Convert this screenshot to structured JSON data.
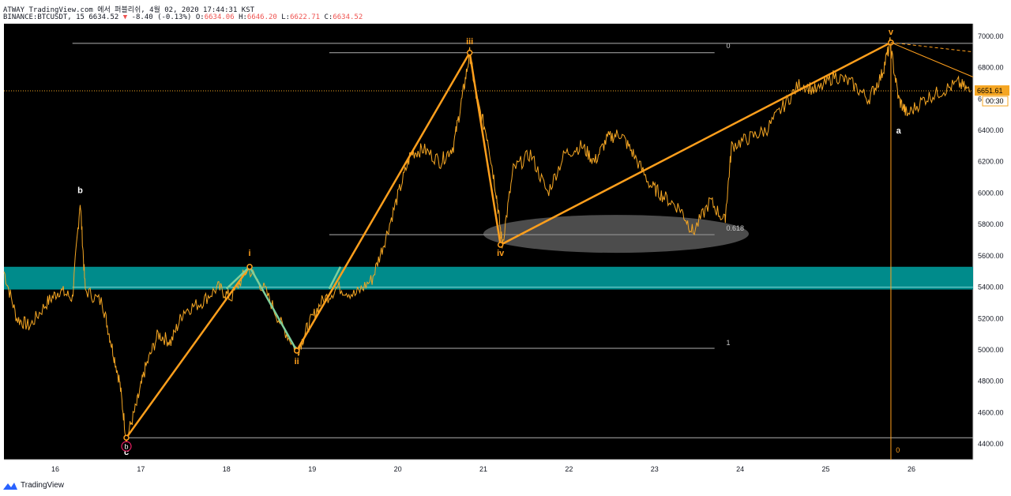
{
  "header": {
    "line1": "ATWAY TradingView.com 에서 퍼블리쉬, 4월 02, 2020 17:44:31 KST",
    "symbol": "BINANCE:BTCUSDT, 15",
    "last": "6634.52",
    "change": "-8.40 (-0.13%)",
    "o_label": "O:",
    "o": "6634.06",
    "h_label": "H:",
    "h": "6646.20",
    "l_label": "L:",
    "l": "6622.71",
    "c_label": "C:",
    "c": "6634.52"
  },
  "footer": {
    "brand": "TradingView"
  },
  "colors": {
    "candle": "#f5a623",
    "wave": "#ff9f1c",
    "wave_i": "#7ecf9c",
    "zone": "#008b8b",
    "fib": "#9e9e9e",
    "price_tag": "#f5a623"
  },
  "chart_data": {
    "type": "line",
    "ylim": [
      4300,
      7080
    ],
    "xlim": [
      15.4,
      26.72
    ],
    "y_ticks": [
      "4400.00",
      "4600.00",
      "4800.00",
      "5000.00",
      "5200.00",
      "5400.00",
      "5600.00",
      "5800.00",
      "6000.00",
      "6200.00",
      "6400.00",
      "6600.00",
      "6800.00",
      "7000.00"
    ],
    "y_tick_values": [
      4400,
      4600,
      4800,
      5000,
      5200,
      5400,
      5600,
      5800,
      6000,
      6200,
      6400,
      6600,
      6800,
      7000
    ],
    "x_ticks": [
      "16",
      "17",
      "18",
      "19",
      "20",
      "21",
      "22",
      "23",
      "24",
      "25",
      "26"
    ],
    "x_tick_values": [
      16,
      17,
      18,
      19,
      20,
      21,
      22,
      23,
      24,
      25,
      26
    ],
    "current_price": "6651.61",
    "current_price_value": 6651.61,
    "countdown": "00:30",
    "price_series": [
      [
        15.4,
        5500
      ],
      [
        15.55,
        5200
      ],
      [
        15.7,
        5150
      ],
      [
        15.9,
        5300
      ],
      [
        16.05,
        5380
      ],
      [
        16.2,
        5330
      ],
      [
        16.29,
        5950
      ],
      [
        16.35,
        5380
      ],
      [
        16.55,
        5300
      ],
      [
        16.65,
        5050
      ],
      [
        16.75,
        4800
      ],
      [
        16.83,
        4430
      ],
      [
        16.95,
        4650
      ],
      [
        17.05,
        4880
      ],
      [
        17.2,
        5100
      ],
      [
        17.35,
        5050
      ],
      [
        17.5,
        5250
      ],
      [
        17.7,
        5300
      ],
      [
        17.9,
        5400
      ],
      [
        18.05,
        5330
      ],
      [
        18.25,
        5520
      ],
      [
        18.45,
        5380
      ],
      [
        18.65,
        5150
      ],
      [
        18.83,
        4990
      ],
      [
        18.95,
        5150
      ],
      [
        19.1,
        5300
      ],
      [
        19.3,
        5400
      ],
      [
        19.5,
        5350
      ],
      [
        19.7,
        5450
      ],
      [
        19.85,
        5700
      ],
      [
        20.0,
        5980
      ],
      [
        20.15,
        6250
      ],
      [
        20.3,
        6280
      ],
      [
        20.5,
        6200
      ],
      [
        20.65,
        6300
      ],
      [
        20.75,
        6600
      ],
      [
        20.84,
        6890
      ],
      [
        20.92,
        6600
      ],
      [
        21.05,
        6350
      ],
      [
        21.15,
        6000
      ],
      [
        21.22,
        5670
      ],
      [
        21.35,
        6150
      ],
      [
        21.55,
        6250
      ],
      [
        21.75,
        6000
      ],
      [
        21.95,
        6250
      ],
      [
        22.15,
        6300
      ],
      [
        22.3,
        6200
      ],
      [
        22.45,
        6350
      ],
      [
        22.6,
        6380
      ],
      [
        22.75,
        6250
      ],
      [
        22.95,
        6050
      ],
      [
        23.1,
        5980
      ],
      [
        23.3,
        5900
      ],
      [
        23.45,
        5750
      ],
      [
        23.65,
        5950
      ],
      [
        23.82,
        5820
      ],
      [
        23.9,
        6300
      ],
      [
        24.1,
        6350
      ],
      [
        24.3,
        6400
      ],
      [
        24.5,
        6550
      ],
      [
        24.7,
        6700
      ],
      [
        24.9,
        6650
      ],
      [
        25.1,
        6750
      ],
      [
        25.3,
        6700
      ],
      [
        25.5,
        6600
      ],
      [
        25.65,
        6750
      ],
      [
        25.75,
        6950
      ],
      [
        25.85,
        6600
      ],
      [
        25.95,
        6500
      ],
      [
        26.15,
        6600
      ],
      [
        26.35,
        6650
      ],
      [
        26.55,
        6700
      ],
      [
        26.7,
        6640
      ]
    ],
    "wave_points": [
      {
        "label": "c",
        "x": 16.83,
        "y": 4440
      },
      {
        "label": "i",
        "x": 18.27,
        "y": 5530
      },
      {
        "label": "ii",
        "x": 18.82,
        "y": 4995
      },
      {
        "label": "iii",
        "x": 20.84,
        "y": 6895
      },
      {
        "label": "iv",
        "x": 21.2,
        "y": 5670
      },
      {
        "label": "v",
        "x": 25.76,
        "y": 6960
      }
    ],
    "labels": [
      {
        "text": "b",
        "x": 16.29,
        "y": 6000
      },
      {
        "text": "i",
        "x": 18.27,
        "y": 5600
      },
      {
        "text": "ii",
        "x": 18.82,
        "y": 4910
      },
      {
        "text": "iii",
        "x": 20.84,
        "y": 6950
      },
      {
        "text": "iv",
        "x": 21.2,
        "y": 5600
      },
      {
        "text": "v",
        "x": 25.76,
        "y": 7010
      },
      {
        "text": "a",
        "x": 25.85,
        "y": 6380
      },
      {
        "text": "c",
        "x": 16.83,
        "y": 4330
      }
    ],
    "circle_label": {
      "text": "b",
      "x": 16.83,
      "y": 4385
    },
    "fib_labels": [
      {
        "text": "0",
        "x": 23.8,
        "y": 6925
      },
      {
        "text": "0.618",
        "x": 23.8,
        "y": 5760
      },
      {
        "text": "1",
        "x": 23.8,
        "y": 5030
      }
    ],
    "vline_label": {
      "text": "0",
      "x": 25.8,
      "y": 4345
    },
    "zone": [
      5385,
      5530
    ],
    "hlines": [
      {
        "y": 6955,
        "x0": 16.2,
        "x1": 26.72
      },
      {
        "y": 6895,
        "x0": 19.2,
        "x1": 23.7
      },
      {
        "y": 5735,
        "x0": 19.2,
        "x1": 23.7
      },
      {
        "y": 5010,
        "x0": 18.8,
        "x1": 23.7
      },
      {
        "y": 4440,
        "x0": 16.8,
        "x1": 26.72
      },
      {
        "y": 5400,
        "x0": 16.2,
        "x1": 26.72
      }
    ]
  }
}
